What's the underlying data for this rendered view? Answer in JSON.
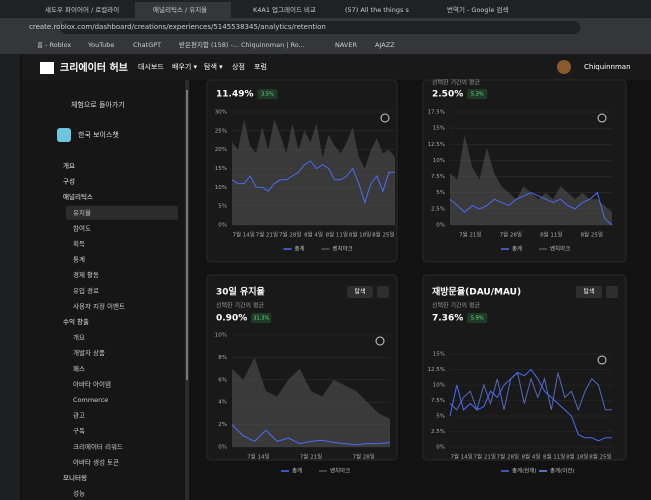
{
  "browser": {
    "tabs": [
      "섀도우 파이어어 / 로컬라이",
      "애널리틱스 / 유지율",
      "K4A1 업그레이드 비교",
      "(57) All the things s",
      "번역기 - Google 검색"
    ],
    "address": "create.roblox.com/dashboard/creations/experiences/5145538345/analytics/retention",
    "bookmarks": [
      "홈 - Roblox",
      "YouTube",
      "ChatGPT",
      "받은편지함 (158) -...",
      "Chiquinnman | Ro...",
      "NAVER",
      "AJAZZ"
    ]
  },
  "header": {
    "logo": "크리에이터 허브",
    "nav": [
      "대시보드",
      "배우기 ▾",
      "탐색 ▾",
      "상점",
      "포럼"
    ],
    "user": "Chiquinnman"
  },
  "sidebar": {
    "back": "체험으로 돌아가기",
    "experience": "한국 보이스챗",
    "items": [
      "개요",
      "구성",
      "애널리틱스",
      "유지율",
      "참여도",
      "획득",
      "통계",
      "경제 활동",
      "유입 경로",
      "사용자 지정 이벤트",
      "수익 창출",
      "개요",
      "개발자 상품",
      "패스",
      "아바타 아이템",
      "Commerce",
      "광고",
      "구독",
      "크리에이터 리워드",
      "아바타 생성 토큰",
      "모니터링",
      "성능"
    ]
  },
  "panels": [
    {
      "value": "11.49%",
      "delta": "3.5%",
      "ylim": [
        0,
        30
      ],
      "yticks": [
        {
          "value": 0,
          "label": "0%"
        },
        {
          "value": 5,
          "label": "5%"
        },
        {
          "value": 10,
          "label": "10%"
        },
        {
          "value": 15,
          "label": "15%"
        },
        {
          "value": 20,
          "label": "20%"
        },
        {
          "value": 25,
          "label": "25%"
        },
        {
          "value": 30,
          "label": "30%"
        }
      ],
      "xticks": [
        "7월 14일",
        "7월 21일",
        "7월 28일",
        "8월 4일",
        "8월 11일",
        "8월 18일",
        "8월 25일"
      ],
      "series": [
        {
          "name": "총계",
          "color": "#4a6cf7",
          "values": [
            12,
            11,
            11,
            13,
            10,
            10,
            9,
            11,
            12,
            12,
            13,
            14,
            16,
            17,
            15,
            16,
            15,
            12,
            12,
            13,
            15,
            11,
            6,
            11,
            13,
            9,
            14,
            14
          ]
        },
        {
          "name": "벤치마크",
          "color": "#555555",
          "values": [
            22,
            20,
            28,
            21,
            19,
            26,
            20,
            28,
            24,
            19,
            27,
            20,
            25,
            22,
            27,
            18,
            24,
            21,
            19,
            22,
            26,
            18,
            15,
            20,
            23,
            19,
            20,
            18
          ]
        }
      ]
    },
    {
      "subtitle": "선택한 기간의 평균",
      "value": "2.50%",
      "delta": "5.3%",
      "ylim": [
        0,
        17.5
      ],
      "yticks": [
        {
          "value": 0,
          "label": "0%"
        },
        {
          "value": 2.5,
          "label": "2.5%"
        },
        {
          "value": 5,
          "label": "5%"
        },
        {
          "value": 7.5,
          "label": "7.5%"
        },
        {
          "value": 10,
          "label": "10%"
        },
        {
          "value": 12.5,
          "label": "12.5%"
        },
        {
          "value": 15,
          "label": "15%"
        },
        {
          "value": 17.5,
          "label": "17.5%"
        }
      ],
      "xticks": [
        "7월 21일",
        "7월 28일",
        "8월 11일",
        "8월 25일"
      ],
      "series": [
        {
          "name": "총계",
          "color": "#4a6cf7",
          "values": [
            4,
            3,
            2,
            3,
            2.5,
            3,
            4,
            3.5,
            3,
            4,
            4.5,
            5,
            4.5,
            4,
            3.5,
            4,
            3,
            2.5,
            3.5,
            4,
            5,
            1,
            0
          ]
        },
        {
          "name": "벤치마크",
          "color": "#555555",
          "values": [
            8,
            7,
            14,
            9,
            7,
            12,
            8,
            6,
            5,
            4,
            6,
            5,
            4,
            5,
            4,
            6,
            5,
            4,
            5,
            4,
            4,
            3,
            2
          ]
        }
      ]
    },
    {
      "title": "30일 유지율",
      "button": "탐색",
      "subtitle": "선택한 기간의 평균",
      "value": "0.90%",
      "delta": "31.3%",
      "ylim": [
        0,
        10
      ],
      "yticks": [
        {
          "value": 0,
          "label": "0%"
        },
        {
          "value": 2,
          "label": "2%"
        },
        {
          "value": 4,
          "label": "4%"
        },
        {
          "value": 6,
          "label": "6%"
        },
        {
          "value": 8,
          "label": "8%"
        },
        {
          "value": 10,
          "label": "10%"
        }
      ],
      "xticks": [
        "7월 14일",
        "7월 21일",
        "7월 28일"
      ],
      "series": [
        {
          "name": "총계",
          "color": "#4a6cf7",
          "values": [
            2,
            1,
            0.5,
            1.5,
            0.5,
            0.8,
            0.3,
            0.5,
            0.6,
            0.4,
            0.3,
            0.2,
            0.3,
            0.3,
            0.4
          ]
        },
        {
          "name": "벤치마크",
          "color": "#555555",
          "values": [
            7,
            6,
            8,
            5,
            4.5,
            6,
            7,
            5,
            4.5,
            6,
            5.5,
            5,
            4,
            3,
            2.5
          ]
        }
      ]
    },
    {
      "title": "재방문율(DAU/MAU)",
      "button": "탐색",
      "subtitle": "선택한 기간의 평균",
      "value": "7.36%",
      "delta": "5.9%",
      "ylim": [
        0,
        15
      ],
      "yticks": [
        {
          "value": 0,
          "label": "0%"
        },
        {
          "value": 2.5,
          "label": "2.5%"
        },
        {
          "value": 5,
          "label": "5%"
        },
        {
          "value": 7.5,
          "label": "7.5%"
        },
        {
          "value": 10,
          "label": "10%"
        },
        {
          "value": 12.5,
          "label": "12.5%"
        },
        {
          "value": 15,
          "label": "15%"
        }
      ],
      "xticks": [
        "7월 14일",
        "7월 21일",
        "7월 28일",
        "8월 4일",
        "8월 11일",
        "8월 18일",
        "8월 25일"
      ],
      "series": [
        {
          "name": "총계(현재)",
          "color": "#4a6cf7",
          "values": [
            5,
            10,
            6,
            7,
            6,
            6.5,
            9,
            8,
            10,
            11,
            12,
            11.5,
            12.5,
            11,
            9,
            8,
            7,
            6,
            5,
            2,
            1.5,
            1.5,
            1,
            1.5,
            1.5
          ]
        },
        {
          "name": "총계(이전)",
          "color": "#6f8cff",
          "values": [
            7,
            6,
            8,
            9,
            6,
            10,
            7,
            11,
            6,
            11,
            12,
            7,
            11,
            8,
            11,
            6,
            12,
            8,
            9,
            6,
            9,
            11,
            10,
            6,
            6
          ]
        }
      ]
    }
  ]
}
